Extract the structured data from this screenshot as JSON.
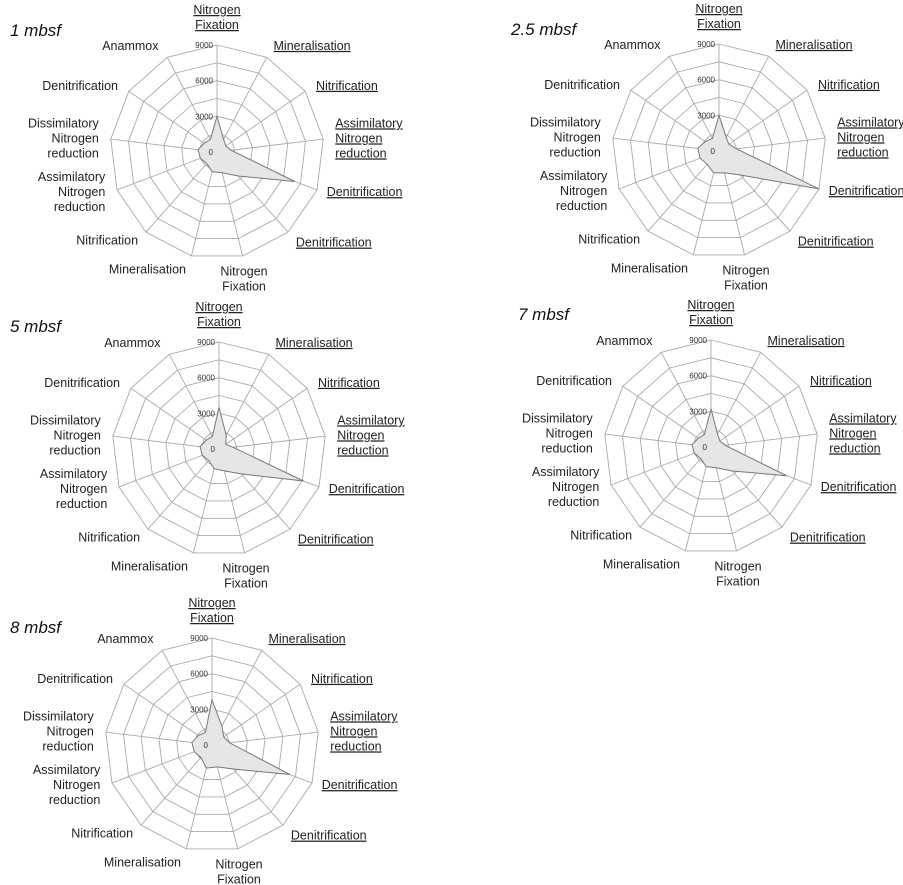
{
  "chart_data": [
    {
      "type": "radar",
      "title": "1 mbsf",
      "axes": [
        "Nitrogen Fixation",
        "Mineralisation",
        "Nitrification",
        "Assimilatory Nitrogen reduction",
        "Denitrification",
        "Denitrification",
        "Nitrogen Fixation",
        "Mineralisation",
        "Nitrification",
        "Assimilatory Nitrogen reduction",
        "Dissimilatory Nitrogen reduction",
        "Denitrification",
        "Anammox"
      ],
      "underlined_axes": [
        true,
        true,
        true,
        true,
        true,
        true,
        false,
        false,
        false,
        false,
        false,
        false,
        false
      ],
      "rlim": [
        0,
        9000
      ],
      "ticks": [
        "0",
        "3000",
        "6000",
        "9000"
      ],
      "series": [
        {
          "values": [
            3000,
            1200,
            900,
            1200,
            7000,
            2700,
            1800,
            1700,
            1300,
            1500,
            1600,
            1300,
            1200
          ]
        }
      ]
    },
    {
      "type": "radar",
      "title": "2.5 mbsf",
      "axes": [
        "Nitrogen Fixation",
        "Mineralisation",
        "Nitrification",
        "Assimilatory Nitrogen reduction",
        "Denitrification",
        "Denitrification",
        "Nitrogen Fixation",
        "Mineralisation",
        "Nitrification",
        "Assimilatory Nitrogen reduction",
        "Dissimilatory Nitrogen reduction",
        "Denitrification",
        "Anammox"
      ],
      "underlined_axes": [
        true,
        true,
        true,
        true,
        true,
        true,
        false,
        false,
        false,
        false,
        false,
        false,
        false
      ],
      "rlim": [
        0,
        9000
      ],
      "ticks": [
        "0",
        "3000",
        "6000",
        "9000"
      ],
      "series": [
        {
          "values": [
            3000,
            1300,
            1000,
            1500,
            9000,
            2700,
            1900,
            1900,
            1500,
            1700,
            1800,
            1400,
            1200
          ]
        }
      ]
    },
    {
      "type": "radar",
      "title": "5 mbsf",
      "axes": [
        "Nitrogen Fixation",
        "Mineralisation",
        "Nitrification",
        "Assimilatory Nitrogen reduction",
        "Denitrification",
        "Denitrification",
        "Nitrogen Fixation",
        "Mineralisation",
        "Nitrification",
        "Assimilatory Nitrogen reduction",
        "Dissimilatory Nitrogen reduction",
        "Denitrification",
        "Anammox"
      ],
      "underlined_axes": [
        true,
        true,
        true,
        true,
        true,
        true,
        false,
        false,
        false,
        false,
        false,
        false,
        false
      ],
      "rlim": [
        0,
        9000
      ],
      "ticks": [
        "0",
        "3000",
        "6000",
        "9000"
      ],
      "series": [
        {
          "values": [
            3500,
            1300,
            700,
            1200,
            7600,
            2800,
            1900,
            1700,
            1300,
            1500,
            1600,
            1300,
            1200
          ]
        }
      ]
    },
    {
      "type": "radar",
      "title": "7 mbsf",
      "axes": [
        "Nitrogen Fixation",
        "Mineralisation",
        "Nitrification",
        "Assimilatory Nitrogen reduction",
        "Denitrification",
        "Denitrification",
        "Nitrogen Fixation",
        "Mineralisation",
        "Nitrification",
        "Assimilatory Nitrogen reduction",
        "Dissimilatory Nitrogen reduction",
        "Denitrification",
        "Anammox"
      ],
      "underlined_axes": [
        true,
        true,
        true,
        true,
        true,
        true,
        false,
        false,
        false,
        false,
        false,
        false,
        false
      ],
      "rlim": [
        0,
        9000
      ],
      "ticks": [
        "0",
        "3000",
        "6000",
        "9000"
      ],
      "series": [
        {
          "values": [
            3200,
            1200,
            900,
            1200,
            6800,
            2700,
            1800,
            1700,
            1300,
            1500,
            1600,
            1300,
            1200
          ]
        }
      ]
    },
    {
      "type": "radar",
      "title": "8 mbsf",
      "axes": [
        "Nitrogen Fixation",
        "Mineralisation",
        "Nitrification",
        "Assimilatory Nitrogen reduction",
        "Denitrification",
        "Denitrification",
        "Nitrogen Fixation",
        "Mineralisation",
        "Nitrification",
        "Assimilatory Nitrogen reduction",
        "Dissimilatory Nitrogen reduction",
        "Denitrification",
        "Anammox"
      ],
      "underlined_axes": [
        true,
        true,
        true,
        true,
        true,
        true,
        false,
        false,
        false,
        false,
        false,
        false,
        false
      ],
      "rlim": [
        0,
        9000
      ],
      "ticks": [
        "0",
        "3000",
        "6000",
        "9000"
      ],
      "series": [
        {
          "values": [
            3800,
            1800,
            1200,
            1500,
            7000,
            2700,
            1900,
            2000,
            1400,
            1600,
            1700,
            1400,
            1200
          ]
        }
      ]
    }
  ],
  "colors": {
    "fill": "#e6e6e6",
    "stroke": "#777777",
    "grid": "#aaaaaa",
    "text": "#222222"
  }
}
